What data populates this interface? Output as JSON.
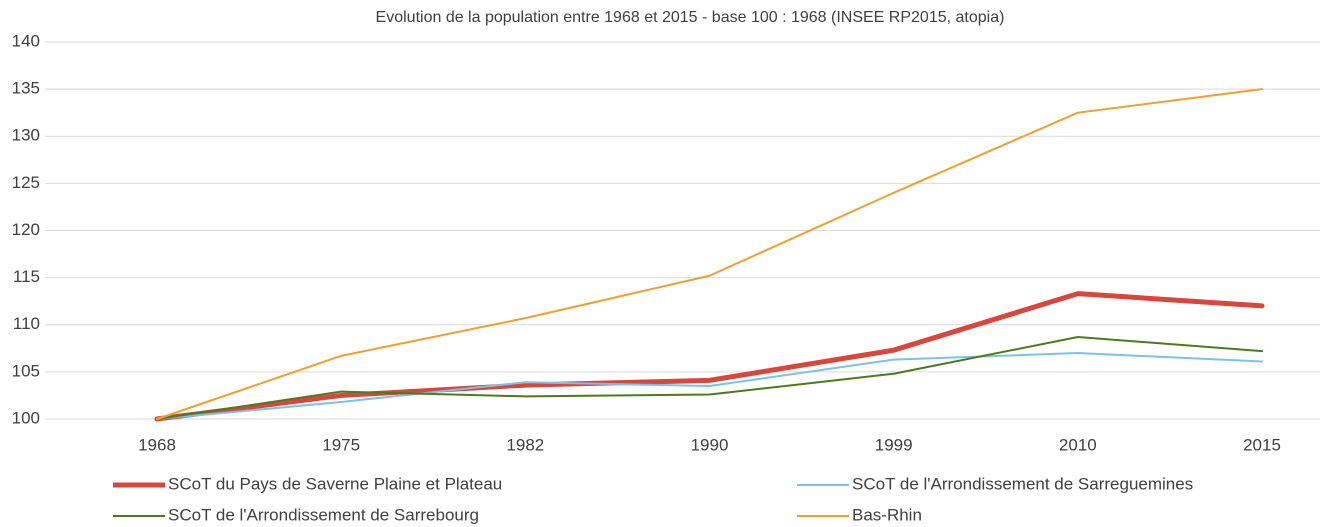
{
  "chart_data": {
    "type": "line",
    "title": "Evolution de la population entre 1968 et 2015 - base 100 : 1968 (INSEE RP2015, atopia)",
    "categories": [
      "1968",
      "1975",
      "1982",
      "1990",
      "1999",
      "2010",
      "2015"
    ],
    "series": [
      {
        "name": "SCoT du Pays de Saverne Plaine et Plateau",
        "color": "#d9463b",
        "width": 5,
        "values": [
          100,
          102.5,
          103.6,
          104.1,
          107.3,
          113.3,
          112.0
        ]
      },
      {
        "name": "SCoT de l'Arrondissement de Sarreguemines",
        "color": "#7cc1e8",
        "width": 2,
        "values": [
          100,
          101.8,
          103.9,
          103.5,
          106.3,
          107.0,
          106.1
        ]
      },
      {
        "name": "SCoT de l'Arrondissement de Sarrebourg",
        "color": "#4d7a1f",
        "width": 2,
        "values": [
          100,
          102.9,
          102.4,
          102.6,
          104.8,
          108.7,
          107.2
        ]
      },
      {
        "name": "Bas-Rhin",
        "color": "#f0a030",
        "width": 2,
        "values": [
          100,
          106.7,
          110.7,
          115.2,
          124.0,
          132.5,
          135.0
        ]
      }
    ],
    "ylim": [
      100,
      140
    ],
    "yticks": [
      100,
      105,
      110,
      115,
      120,
      125,
      130,
      135,
      140
    ],
    "grid": true
  }
}
